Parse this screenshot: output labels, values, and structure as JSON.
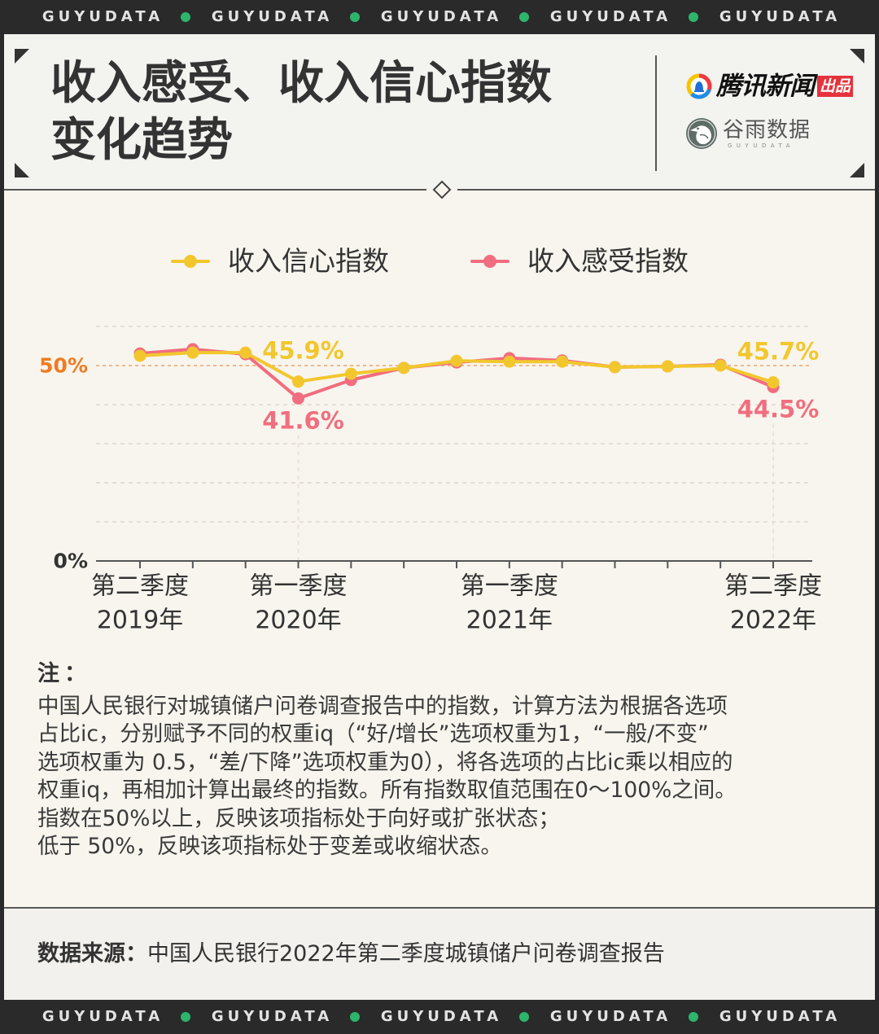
{
  "brand_strip": {
    "text": "GUYUDATA"
  },
  "logos": {
    "tencent": {
      "name": "腾讯新闻",
      "badge": "出品"
    },
    "guyu": {
      "name": "谷雨数据",
      "sub": "GUYUDATA"
    }
  },
  "chart_data": {
    "type": "line",
    "title_lines": [
      "收入感受、收入信心指数",
      "变化趋势"
    ],
    "series": [
      {
        "name": "收入信心指数",
        "color": "#f2c72e",
        "values": [
          52.5,
          53.3,
          53.3,
          45.9,
          47.9,
          49.4,
          51.2,
          51.0,
          51.0,
          49.6,
          49.8,
          50.0,
          45.7
        ]
      },
      {
        "name": "收入感受指数",
        "color": "#f06e7f",
        "values": [
          53.1,
          54.2,
          52.9,
          41.6,
          46.3,
          49.4,
          50.8,
          51.9,
          51.3,
          49.6,
          49.8,
          50.2,
          44.5
        ]
      }
    ],
    "xtick_labels": [
      {
        "index": 0,
        "quarter": "第二季度",
        "year": "2019年"
      },
      {
        "index": 3,
        "quarter": "第一季度",
        "year": "2020年"
      },
      {
        "index": 7,
        "quarter": "第一季度",
        "year": "2021年"
      },
      {
        "index": 12,
        "quarter": "第二季度",
        "year": "2022年"
      }
    ],
    "ylim": [
      0,
      60
    ],
    "yticks": [
      {
        "value": 0,
        "label": "0%"
      },
      {
        "value": 50,
        "label": "50%",
        "color": "#ef7b21",
        "reference_line": true
      }
    ],
    "gridlines": [
      10,
      20,
      30,
      40,
      60
    ],
    "grid": true,
    "annotations": [
      {
        "series": 0,
        "index": 3,
        "label": "45.9%"
      },
      {
        "series": 1,
        "index": 3,
        "label": "41.6%"
      },
      {
        "series": 0,
        "index": 12,
        "label": "45.7%"
      },
      {
        "series": 1,
        "index": 12,
        "label": "44.5%"
      }
    ]
  },
  "notes": {
    "heading": "注：",
    "lines": [
      "中国人民银行对城镇储户问卷调查报告中的指数，计算方法为根据各选项",
      "占比ic，分别赋予不同的权重iq（“好/增长”选项权重为1，“一般/不变”",
      "选项权重为 0.5，“差/下降”选项权重为0），将各选项的占比ic乘以相应的",
      "权重iq，再相加计算出最终的指数。所有指数取值范围在0～100%之间。",
      "指数在50%以上，反映该项指标处于向好或扩张状态；",
      "低于 50%，反映该项指标处于变差或收缩状态。"
    ]
  },
  "source": {
    "label": "数据来源：",
    "text": "中国人民银行2022年第二季度城镇储户问卷调查报告"
  }
}
